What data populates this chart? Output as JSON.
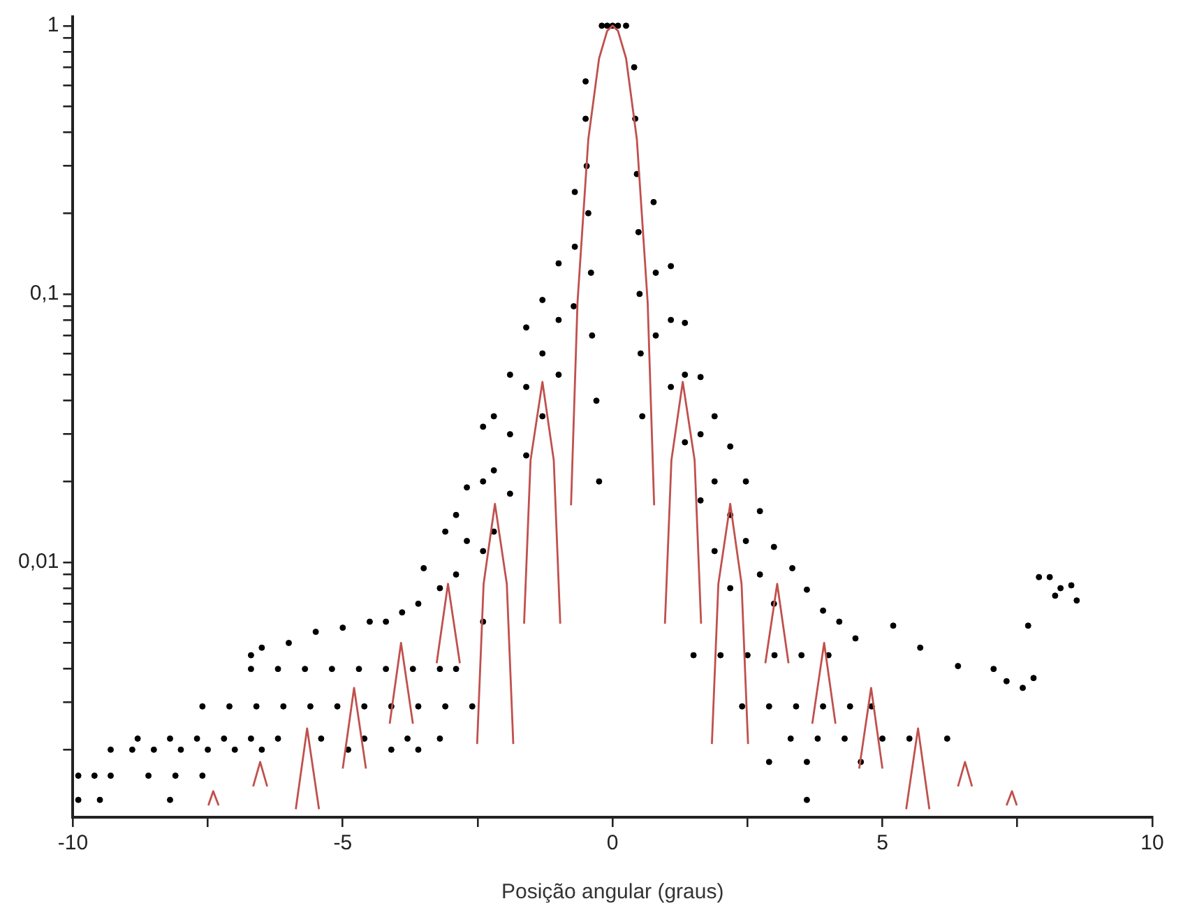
{
  "chart_data": {
    "type": "scatter",
    "xlabel": "Posição angular (graus)",
    "log": "y",
    "grid": false,
    "xlim": [
      -10,
      10
    ],
    "xticks": [
      -10,
      {
        "value": -7.5,
        "label": null
      },
      -5,
      {
        "value": -2.5,
        "label": null
      },
      0,
      {
        "value": 2.5,
        "label": null
      },
      5,
      {
        "value": 7.5,
        "label": null
      },
      10
    ],
    "ylim": [
      0.00112,
      1.08
    ],
    "yticks": [
      {
        "value": 0.002,
        "label": null
      },
      {
        "value": 0.003,
        "label": null
      },
      {
        "value": 0.004,
        "label": null
      },
      {
        "value": 0.005,
        "label": null
      },
      {
        "value": 0.006,
        "label": null
      },
      {
        "value": 0.007,
        "label": null
      },
      {
        "value": 0.008,
        "label": null
      },
      {
        "value": 0.009,
        "label": null
      },
      {
        "value": 0.01,
        "label": "0,01"
      },
      {
        "value": 0.02,
        "label": null
      },
      {
        "value": 0.03,
        "label": null
      },
      {
        "value": 0.04,
        "label": null
      },
      {
        "value": 0.05,
        "label": null
      },
      {
        "value": 0.06,
        "label": null
      },
      {
        "value": 0.07,
        "label": null
      },
      {
        "value": 0.08,
        "label": null
      },
      {
        "value": 0.09,
        "label": null
      },
      {
        "value": 0.1,
        "label": "0,1"
      },
      {
        "value": 0.2,
        "label": null
      },
      {
        "value": 0.3,
        "label": null
      },
      {
        "value": 0.4,
        "label": null
      },
      {
        "value": 0.5,
        "label": null
      },
      {
        "value": 0.6,
        "label": null
      },
      {
        "value": 0.7,
        "label": null
      },
      {
        "value": 0.8,
        "label": null
      },
      {
        "value": 0.9,
        "label": null
      },
      1
    ],
    "series": [
      {
        "color": "#000000",
        "marker": "circle",
        "x": [
          -0.2,
          -0.1,
          0,
          0.1,
          0.25,
          -0.5,
          -0.5,
          -0.48,
          -0.45,
          -0.4,
          -0.38,
          -0.3,
          -0.25,
          0.4,
          0.42,
          0.45,
          0.48,
          0.5,
          0.52,
          0.55,
          -0.7,
          -0.7,
          -0.72,
          -1.0,
          -1.0,
          -1.0,
          -1.3,
          -1.3,
          -1.3,
          -1.6,
          -1.6,
          -1.6,
          -1.9,
          -1.9,
          -1.9,
          -2.2,
          -2.2,
          -2.2,
          -2.4,
          -2.4,
          -2.4,
          -2.4,
          -2.7,
          -2.7,
          -2.9,
          -2.9,
          -3.1,
          -3.2,
          -3.5,
          -3.6,
          -3.9,
          -4.2,
          -4.5,
          -5.0,
          -5.5,
          -6.0,
          -6.5,
          -6.7,
          -6.7,
          -6.2,
          -5.7,
          -5.2,
          -4.7,
          -4.2,
          -3.7,
          -3.2,
          -2.9,
          -7.6,
          -7.1,
          -6.6,
          -6.1,
          -5.6,
          -5.1,
          -4.6,
          -4.1,
          -3.6,
          -3.1,
          -2.6,
          -8.8,
          -8.2,
          -7.7,
          -7.2,
          -6.7,
          -6.2,
          -5.4,
          -4.6,
          -3.8,
          -3.2,
          -9.3,
          -8.9,
          -8.5,
          -8.0,
          -7.5,
          -7.0,
          -6.5,
          -4.9,
          -4.1,
          -3.6,
          -9.9,
          -9.6,
          -9.3,
          -8.6,
          -8.1,
          -7.6,
          -9.9,
          -9.5,
          -8.2,
          0.76,
          0.8,
          0.8,
          1.08,
          1.08,
          1.08,
          1.34,
          1.34,
          1.34,
          1.63,
          1.63,
          1.63,
          1.89,
          1.89,
          1.89,
          2.18,
          2.18,
          2.18,
          2.47,
          2.47,
          2.73,
          2.73,
          2.99,
          2.99,
          3.33,
          3.6,
          3.9,
          4.2,
          4.5,
          5.2,
          5.7,
          6.4,
          7.06,
          7.3,
          7.8,
          7.6,
          7.9,
          8.1,
          8.3,
          8.5,
          8.6,
          8.2,
          7.7,
          1.5,
          2.0,
          2.5,
          3.0,
          3.5,
          4.0,
          2.4,
          2.9,
          3.4,
          3.9,
          4.4,
          4.8,
          3.3,
          3.8,
          4.3,
          5.0,
          5.5,
          6.2,
          2.9,
          3.6,
          4.6,
          3.6
        ],
        "values": [
          1,
          1,
          1,
          1,
          1,
          0.62,
          0.45,
          0.3,
          0.2,
          0.12,
          0.07,
          0.04,
          0.02,
          0.7,
          0.45,
          0.28,
          0.17,
          0.1,
          0.06,
          0.035,
          0.24,
          0.15,
          0.09,
          0.13,
          0.08,
          0.05,
          0.095,
          0.06,
          0.035,
          0.075,
          0.045,
          0.025,
          0.05,
          0.03,
          0.018,
          0.035,
          0.022,
          0.013,
          0.032,
          0.02,
          0.011,
          0.006,
          0.019,
          0.012,
          0.015,
          0.009,
          0.013,
          0.008,
          0.0095,
          0.007,
          0.0065,
          0.006,
          0.006,
          0.0057,
          0.0055,
          0.005,
          0.0048,
          0.0045,
          0.004,
          0.004,
          0.004,
          0.004,
          0.004,
          0.004,
          0.004,
          0.004,
          0.004,
          0.0029,
          0.0029,
          0.0029,
          0.0029,
          0.0029,
          0.0029,
          0.0029,
          0.0029,
          0.0029,
          0.0029,
          0.0029,
          0.0022,
          0.0022,
          0.0022,
          0.0022,
          0.0022,
          0.0022,
          0.0022,
          0.0022,
          0.0022,
          0.0022,
          0.002,
          0.002,
          0.002,
          0.002,
          0.002,
          0.002,
          0.002,
          0.002,
          0.002,
          0.002,
          0.0016,
          0.0016,
          0.0016,
          0.0016,
          0.0016,
          0.0016,
          0.0013,
          0.0013,
          0.0013,
          0.22,
          0.12,
          0.07,
          0.127,
          0.08,
          0.045,
          0.078,
          0.05,
          0.028,
          0.049,
          0.03,
          0.017,
          0.035,
          0.02,
          0.011,
          0.027,
          0.015,
          0.008,
          0.02,
          0.012,
          0.0155,
          0.009,
          0.0114,
          0.007,
          0.0095,
          0.0079,
          0.0066,
          0.006,
          0.0052,
          0.0058,
          0.0048,
          0.0041,
          0.004,
          0.0036,
          0.0037,
          0.0034,
          0.0088,
          0.0088,
          0.008,
          0.0082,
          0.0072,
          0.0075,
          0.0058,
          0.0045,
          0.0045,
          0.0045,
          0.0045,
          0.0045,
          0.0045,
          0.0029,
          0.0029,
          0.0029,
          0.0029,
          0.0029,
          0.0029,
          0.0022,
          0.0022,
          0.0022,
          0.0022,
          0.0022,
          0.0022,
          0.0018,
          0.0018,
          0.0018,
          0.0013
        ]
      },
      {
        "type": "line",
        "color": "#c0504d",
        "marker": "none",
        "x": [
          -7.49,
          -7.4,
          -7.3,
          -6.96,
          -6.66,
          -6.53,
          -6.4,
          -6.09,
          -5.87,
          -5.66,
          -5.44,
          -5.22,
          -5.0,
          -4.79,
          -4.57,
          -4.35,
          -4.13,
          -3.92,
          -3.7,
          -3.48,
          -3.26,
          -3.05,
          -2.83,
          -2.61,
          -2.51,
          -2.39,
          -2.18,
          -1.96,
          -1.84,
          -1.74,
          -1.64,
          -1.52,
          -1.3,
          -1.09,
          -0.97,
          -0.87,
          -0.77,
          -0.65,
          -0.45,
          -0.25,
          -0.1,
          0,
          0.1,
          0.25,
          0.45,
          0.65,
          0.77,
          0.87,
          0.97,
          1.09,
          1.3,
          1.52,
          1.64,
          1.74,
          1.84,
          1.96,
          2.18,
          2.39,
          2.51,
          2.61,
          2.83,
          3.05,
          3.26,
          3.48,
          3.7,
          3.92,
          4.13,
          4.35,
          4.57,
          4.79,
          5.0,
          5.22,
          5.44,
          5.66,
          5.87,
          6.09,
          6.4,
          6.53,
          6.66,
          6.96,
          7.3,
          7.4,
          7.49
        ],
        "values": [
          0.00124,
          0.0014,
          0.00124,
          null,
          0.00146,
          0.0018,
          0.00146,
          null,
          0.0012,
          0.0024,
          0.0012,
          null,
          0.0017,
          0.0034,
          0.0017,
          null,
          0.0025,
          0.005,
          0.0025,
          null,
          0.0042,
          0.0083,
          0.0042,
          null,
          0.0021,
          0.0083,
          0.0165,
          0.0083,
          0.0021,
          null,
          0.0059,
          0.024,
          0.047,
          0.024,
          0.0059,
          null,
          0.0163,
          0.093,
          0.377,
          0.756,
          0.957,
          1,
          0.957,
          0.756,
          0.377,
          0.093,
          0.0163,
          null,
          0.0059,
          0.024,
          0.047,
          0.024,
          0.0059,
          null,
          0.0021,
          0.0083,
          0.0165,
          0.0083,
          0.0021,
          null,
          0.0042,
          0.0083,
          0.0042,
          null,
          0.0025,
          0.005,
          0.0025,
          null,
          0.0017,
          0.0034,
          0.0017,
          null,
          0.0012,
          0.0024,
          0.0012,
          null,
          0.00146,
          0.0018,
          0.00146,
          null,
          0.00124,
          0.0014,
          0.00124
        ]
      }
    ]
  }
}
